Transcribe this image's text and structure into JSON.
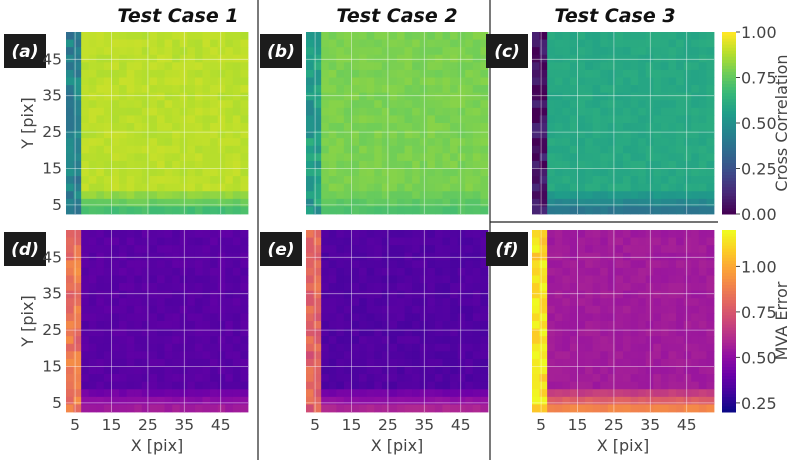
{
  "chart_data": {
    "type": "heatmap",
    "columns": [
      "Test Case 1",
      "Test Case 2",
      "Test Case 3"
    ],
    "panel_labels": [
      "(a)",
      "(b)",
      "(c)",
      "(d)",
      "(e)",
      "(f)"
    ],
    "xlabel": "X [pix]",
    "ylabel": "Y [pix]",
    "xticks": [
      "5",
      "15",
      "25",
      "35",
      "45"
    ],
    "yticks": [
      "5",
      "15",
      "25",
      "35",
      "45"
    ],
    "grid_size": 24,
    "rows": [
      {
        "metric": "Cross Correlation",
        "colormap": "viridis",
        "vmin": 0.0,
        "vmax": 1.0,
        "colorbar_label": "Cross Correlation",
        "colorbar_ticks": [
          "0.00",
          "0.25",
          "0.50",
          "0.75",
          "1.00"
        ],
        "panels": [
          {
            "label": "(a)",
            "case": "Test Case 1",
            "interior_value": 0.9,
            "edge_value": 0.45,
            "bottom_value": 0.7
          },
          {
            "label": "(b)",
            "case": "Test Case 2",
            "interior_value": 0.8,
            "edge_value": 0.55,
            "bottom_value": 0.72
          },
          {
            "label": "(c)",
            "case": "Test Case 3",
            "interior_value": 0.6,
            "edge_value": 0.05,
            "bottom_value": 0.4
          }
        ]
      },
      {
        "metric": "MVA Error",
        "colormap": "plasma",
        "vmin": 0.2,
        "vmax": 1.2,
        "colorbar_label": "MVA Error",
        "colorbar_ticks": [
          "0.25",
          "0.50",
          "0.75",
          "1.00"
        ],
        "panels": [
          {
            "label": "(d)",
            "case": "Test Case 1",
            "interior_value": 0.36,
            "edge_value": 0.85,
            "bottom_value": 0.55
          },
          {
            "label": "(e)",
            "case": "Test Case 2",
            "interior_value": 0.34,
            "edge_value": 0.8,
            "bottom_value": 0.58
          },
          {
            "label": "(f)",
            "case": "Test Case 3",
            "interior_value": 0.55,
            "edge_value": 1.15,
            "bottom_value": 0.9
          }
        ]
      }
    ]
  }
}
